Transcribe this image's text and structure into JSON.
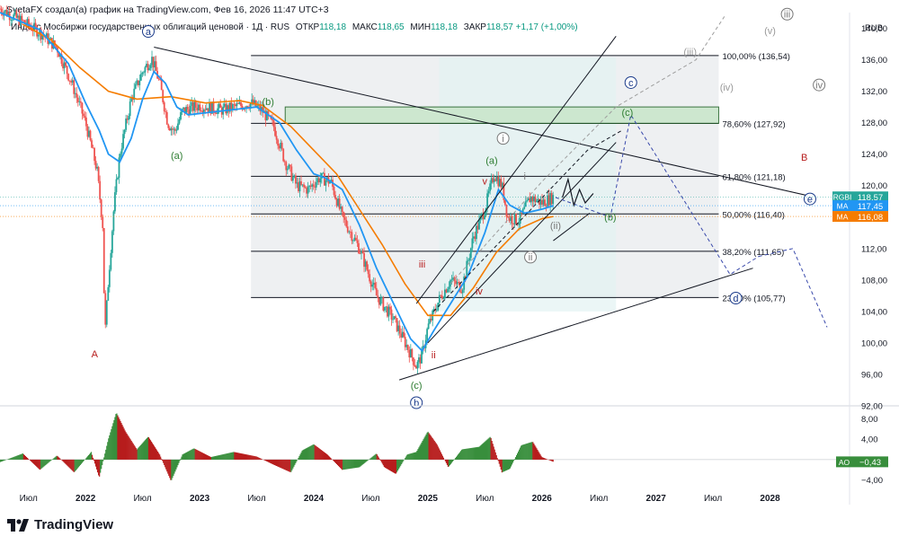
{
  "header": {
    "title": "SvetaFX создал(а) график на TradingView.com, Фев 16, 2026 11:47 UTC+3"
  },
  "legend": {
    "symbol": "Индекс Мосбиржи государственных облигаций ценовой · 1Д · RUS",
    "open_label": "ОТКР",
    "open": "118,18",
    "high_label": "МАКС",
    "high": "118,65",
    "low_label": "МИН",
    "low": "118,18",
    "close_label": "ЗАКР",
    "close": "118,57",
    "change": "+1,17 (+1,00%)"
  },
  "footer": {
    "brand": "TradingView"
  },
  "colors": {
    "bull": "#26a69a",
    "bear": "#ef5350",
    "ma_fast": "#2196f3",
    "ma_slow": "#f57c00",
    "ao_up": "#388e3c",
    "ao_down": "#b71c1c"
  },
  "chart_data": {
    "type": "candlestick",
    "currency": "RUB",
    "ylim": [
      92,
      142
    ],
    "y_ticks": [
      "140,00",
      "136,00",
      "132,00",
      "128,00",
      "124,00",
      "120,00",
      "116,00",
      "112,00",
      "108,00",
      "104,00",
      "100,00",
      "96,00",
      "92,00"
    ],
    "y_tick_values": [
      140,
      136,
      132,
      128,
      124,
      120,
      116,
      112,
      108,
      104,
      100,
      96,
      92
    ],
    "x_ticks": [
      "Июл",
      "2022",
      "Июл",
      "2023",
      "Июл",
      "2024",
      "Июл",
      "2025",
      "Июл",
      "2026",
      "Июл",
      "2027",
      "Июл",
      "2028"
    ],
    "x_tick_values": [
      2021.5,
      2022.0,
      2022.5,
      2023.0,
      2023.5,
      2024.0,
      2024.5,
      2025.0,
      2025.5,
      2026.0,
      2026.5,
      2027.0,
      2027.5,
      2028.0
    ],
    "x_range": [
      2021.25,
      2028.5
    ],
    "price_path": [
      [
        2021.25,
        142.5
      ],
      [
        2021.45,
        140.8
      ],
      [
        2021.6,
        139.5
      ],
      [
        2021.75,
        137.5
      ],
      [
        2021.88,
        133.0
      ],
      [
        2022.0,
        128.0
      ],
      [
        2022.1,
        122.0
      ],
      [
        2022.15,
        115.0
      ],
      [
        2022.17,
        101.0
      ],
      [
        2022.2,
        108.0
      ],
      [
        2022.25,
        117.5
      ],
      [
        2022.3,
        124.0
      ],
      [
        2022.4,
        131.0
      ],
      [
        2022.5,
        134.5
      ],
      [
        2022.58,
        136.2
      ],
      [
        2022.65,
        133.0
      ],
      [
        2022.72,
        128.0
      ],
      [
        2022.78,
        126.8
      ],
      [
        2022.85,
        129.5
      ],
      [
        2023.0,
        130.2
      ],
      [
        2023.2,
        129.6
      ],
      [
        2023.45,
        130.5
      ],
      [
        2023.55,
        129.5
      ],
      [
        2023.65,
        127.5
      ],
      [
        2023.75,
        123.0
      ],
      [
        2023.85,
        120.0
      ],
      [
        2023.95,
        119.5
      ],
      [
        2024.05,
        121.0
      ],
      [
        2024.15,
        120.5
      ],
      [
        2024.25,
        116.0
      ],
      [
        2024.4,
        112.0
      ],
      [
        2024.55,
        106.0
      ],
      [
        2024.7,
        103.0
      ],
      [
        2024.82,
        99.5
      ],
      [
        2024.9,
        97.0
      ],
      [
        2024.95,
        98.5
      ],
      [
        2025.0,
        102.0
      ],
      [
        2025.1,
        105.5
      ],
      [
        2025.2,
        108.0
      ],
      [
        2025.3,
        107.0
      ],
      [
        2025.4,
        113.5
      ],
      [
        2025.5,
        117.0
      ],
      [
        2025.58,
        121.5
      ],
      [
        2025.65,
        120.0
      ],
      [
        2025.7,
        116.0
      ],
      [
        2025.8,
        115.5
      ],
      [
        2025.9,
        118.5
      ],
      [
        2026.0,
        117.8
      ],
      [
        2026.1,
        118.57
      ]
    ],
    "ma_fast_path": [
      [
        2021.25,
        142.0
      ],
      [
        2021.6,
        139.8
      ],
      [
        2021.85,
        135.5
      ],
      [
        2022.0,
        130.5
      ],
      [
        2022.12,
        127.0
      ],
      [
        2022.2,
        124.0
      ],
      [
        2022.3,
        123.0
      ],
      [
        2022.4,
        126.0
      ],
      [
        2022.5,
        131.0
      ],
      [
        2022.6,
        134.5
      ],
      [
        2022.7,
        133.0
      ],
      [
        2022.8,
        130.0
      ],
      [
        2022.9,
        129.0
      ],
      [
        2023.2,
        129.5
      ],
      [
        2023.5,
        130.0
      ],
      [
        2023.7,
        128.0
      ],
      [
        2023.85,
        124.5
      ],
      [
        2024.0,
        121.5
      ],
      [
        2024.1,
        121.0
      ],
      [
        2024.25,
        119.5
      ],
      [
        2024.4,
        115.0
      ],
      [
        2024.55,
        109.5
      ],
      [
        2024.7,
        105.0
      ],
      [
        2024.85,
        100.5
      ],
      [
        2024.95,
        99.0
      ],
      [
        2025.05,
        101.5
      ],
      [
        2025.2,
        105.0
      ],
      [
        2025.35,
        108.5
      ],
      [
        2025.5,
        114.0
      ],
      [
        2025.62,
        119.5
      ],
      [
        2025.72,
        117.5
      ],
      [
        2025.85,
        116.5
      ],
      [
        2026.0,
        117.0
      ],
      [
        2026.1,
        117.45
      ]
    ],
    "ma_slow_path": [
      [
        2021.45,
        140.5
      ],
      [
        2021.7,
        138.5
      ],
      [
        2021.95,
        135.0
      ],
      [
        2022.2,
        132.0
      ],
      [
        2022.45,
        131.0
      ],
      [
        2022.75,
        131.3
      ],
      [
        2023.05,
        130.5
      ],
      [
        2023.35,
        130.8
      ],
      [
        2023.55,
        130.2
      ],
      [
        2023.8,
        127.5
      ],
      [
        2024.0,
        124.5
      ],
      [
        2024.2,
        121.5
      ],
      [
        2024.4,
        117.0
      ],
      [
        2024.6,
        112.5
      ],
      [
        2024.8,
        107.5
      ],
      [
        2025.0,
        103.5
      ],
      [
        2025.2,
        103.5
      ],
      [
        2025.4,
        107.0
      ],
      [
        2025.6,
        111.5
      ],
      [
        2025.8,
        114.5
      ],
      [
        2026.0,
        115.8
      ],
      [
        2026.1,
        116.08
      ]
    ],
    "fib_levels": [
      {
        "label": "100,00% (136,54)",
        "value": 136.54
      },
      {
        "label": "78,60% (127,92)",
        "value": 127.92
      },
      {
        "label": "61,80% (121,18)",
        "value": 121.18
      },
      {
        "label": "50,00% (116,40)",
        "value": 116.4
      },
      {
        "label": "38,20% (111,65)",
        "value": 111.65
      },
      {
        "label": "23,60% (105,77)",
        "value": 105.77
      }
    ],
    "fib_zone": [
      127.92,
      130.0
    ],
    "price_badges": [
      {
        "label": "RGBI",
        "value": "118,57",
        "y": 118.57,
        "color": "#26a69a"
      },
      {
        "label": "MA",
        "value": "117,45",
        "y": 117.45,
        "color": "#2196f3"
      },
      {
        "label": "MA",
        "value": "116,08",
        "y": 116.08,
        "color": "#f57c00"
      }
    ],
    "trendlines": [
      {
        "points": [
          [
            2022.6,
            137.6
          ],
          [
            2028.4,
            118.5
          ]
        ],
        "color": "#131722"
      },
      {
        "points": [
          [
            2024.75,
            95.3
          ],
          [
            2027.85,
            109.5
          ]
        ],
        "color": "#131722"
      },
      {
        "points": [
          [
            2024.9,
            105.0
          ],
          [
            2026.65,
            139.0
          ]
        ],
        "color": "#131722"
      },
      {
        "points": [
          [
            2025.0,
            100.0
          ],
          [
            2026.65,
            125.5
          ]
        ],
        "color": "#131722"
      }
    ],
    "wave_labels": [
      {
        "text": "a",
        "x": 2022.55,
        "y": 139.6,
        "circle": true,
        "color": "#1a3a8a"
      },
      {
        "text": "A",
        "x": 2022.08,
        "y": 98.6,
        "circle": false,
        "color": "#b71c1c"
      },
      {
        "text": "(a)",
        "x": 2022.8,
        "y": 123.8,
        "circle": false,
        "color": "#2e7d32"
      },
      {
        "text": "(b)",
        "x": 2023.6,
        "y": 130.7,
        "circle": false,
        "color": "#2e7d32"
      },
      {
        "text": "(c)",
        "x": 2024.9,
        "y": 94.6,
        "circle": false,
        "color": "#2e7d32"
      },
      {
        "text": "b",
        "x": 2024.9,
        "y": 92.4,
        "circle": true,
        "color": "#1a3a8a"
      },
      {
        "text": "iii",
        "x": 2024.95,
        "y": 110.0,
        "circle": false,
        "color": "#b71c1c"
      },
      {
        "text": "ii",
        "x": 2025.05,
        "y": 98.5,
        "circle": false,
        "color": "#b71c1c"
      },
      {
        "text": "iv",
        "x": 2025.45,
        "y": 106.6,
        "circle": false,
        "color": "#b71c1c"
      },
      {
        "text": "v",
        "x": 2025.5,
        "y": 120.6,
        "circle": false,
        "color": "#b71c1c"
      },
      {
        "text": "(a)",
        "x": 2025.56,
        "y": 123.2,
        "circle": false,
        "color": "#2e7d32"
      },
      {
        "text": "i",
        "x": 2025.66,
        "y": 126.0,
        "circle": true,
        "color": "#777777"
      },
      {
        "text": "ii",
        "x": 2025.9,
        "y": 110.9,
        "circle": true,
        "color": "#777777"
      },
      {
        "text": "i",
        "x": 2025.85,
        "y": 121.2,
        "circle": false,
        "color": "#777777"
      },
      {
        "text": "(ii)",
        "x": 2026.12,
        "y": 114.9,
        "circle": false,
        "color": "#777777"
      },
      {
        "text": "(b)",
        "x": 2026.6,
        "y": 116.0,
        "circle": false,
        "color": "#2e7d32"
      },
      {
        "text": "(c)",
        "x": 2026.75,
        "y": 129.3,
        "circle": false,
        "color": "#2e7d32"
      },
      {
        "text": "c",
        "x": 2026.78,
        "y": 133.1,
        "circle": true,
        "color": "#1a3a8a"
      },
      {
        "text": "(iii)",
        "x": 2027.3,
        "y": 137.0,
        "circle": false,
        "color": "#999999"
      },
      {
        "text": "(iv)",
        "x": 2027.62,
        "y": 132.5,
        "circle": false,
        "color": "#999999"
      },
      {
        "text": "(v)",
        "x": 2028.0,
        "y": 139.7,
        "circle": false,
        "color": "#999999"
      },
      {
        "text": "iii",
        "x": 2028.15,
        "y": 141.8,
        "circle": true,
        "color": "#777777"
      },
      {
        "text": "iv",
        "x": 2028.43,
        "y": 132.8,
        "circle": true,
        "color": "#777777"
      },
      {
        "text": "B",
        "x": 2028.3,
        "y": 123.6,
        "circle": false,
        "color": "#b71c1c"
      },
      {
        "text": "e",
        "x": 2028.35,
        "y": 118.3,
        "circle": true,
        "color": "#1a3a8a"
      },
      {
        "text": "d",
        "x": 2027.7,
        "y": 105.7,
        "circle": true,
        "color": "#1a3a8a"
      }
    ],
    "ao": {
      "name": "AO",
      "value": "−0,43",
      "ylim": [
        -5.8,
        10.5
      ],
      "ticks": [
        "8,00",
        "4,00",
        "0,00",
        "−4,00"
      ],
      "tick_values": [
        8,
        4,
        0,
        -4
      ],
      "path": [
        [
          2021.25,
          -0.5
        ],
        [
          2021.45,
          1.2
        ],
        [
          2021.6,
          -2.0
        ],
        [
          2021.75,
          0.8
        ],
        [
          2021.9,
          -2.5
        ],
        [
          2022.05,
          1.5
        ],
        [
          2022.12,
          -3.5
        ],
        [
          2022.2,
          4.0
        ],
        [
          2022.27,
          9.2
        ],
        [
          2022.35,
          5.5
        ],
        [
          2022.45,
          2.0
        ],
        [
          2022.55,
          4.5
        ],
        [
          2022.65,
          1.0
        ],
        [
          2022.75,
          -4.2
        ],
        [
          2022.85,
          1.0
        ],
        [
          2022.95,
          2.2
        ],
        [
          2023.1,
          0.5
        ],
        [
          2023.3,
          1.5
        ],
        [
          2023.5,
          0.6
        ],
        [
          2023.65,
          -1.0
        ],
        [
          2023.8,
          -2.5
        ],
        [
          2023.9,
          1.8
        ],
        [
          2024.0,
          3.0
        ],
        [
          2024.12,
          1.0
        ],
        [
          2024.25,
          -2.0
        ],
        [
          2024.4,
          -1.5
        ],
        [
          2024.55,
          1.2
        ],
        [
          2024.62,
          -1.5
        ],
        [
          2024.72,
          -2.8
        ],
        [
          2024.82,
          1.0
        ],
        [
          2024.9,
          1.5
        ],
        [
          2025.0,
          5.5
        ],
        [
          2025.08,
          3.0
        ],
        [
          2025.18,
          -1.5
        ],
        [
          2025.3,
          2.0
        ],
        [
          2025.45,
          2.5
        ],
        [
          2025.55,
          4.5
        ],
        [
          2025.65,
          -2.5
        ],
        [
          2025.72,
          -1.8
        ],
        [
          2025.82,
          2.8
        ],
        [
          2025.92,
          3.5
        ],
        [
          2026.0,
          0.5
        ],
        [
          2026.1,
          -0.43
        ]
      ]
    }
  }
}
